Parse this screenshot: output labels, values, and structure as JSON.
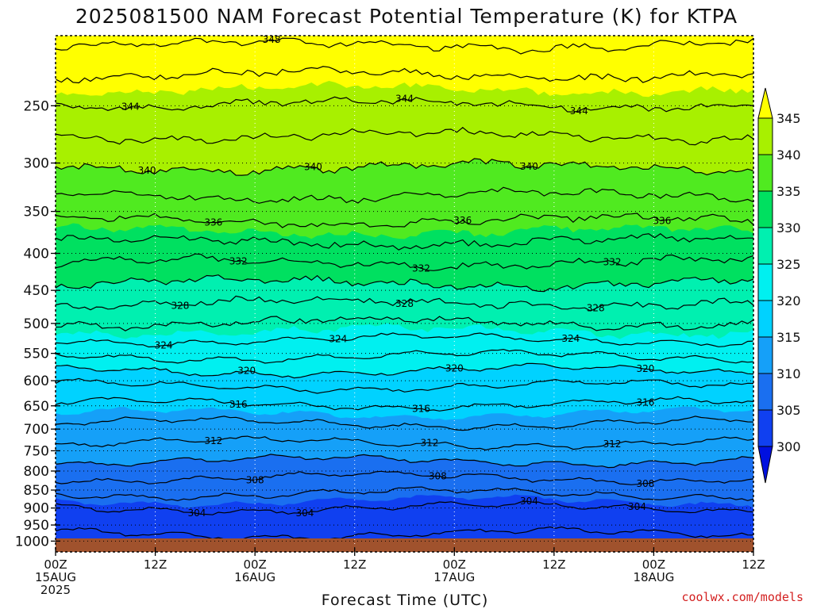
{
  "title": "2025081500 NAM Forecast Potential Temperature (K) for KTPA",
  "credit": "coolwx.com/models",
  "chart_data": {
    "type": "heatmap",
    "title": "2025081500 NAM Forecast Potential Temperature (K) for KTPA",
    "xlabel": "Forecast Time (UTC)",
    "ylabel": "",
    "x_range_hours": [
      0,
      84
    ],
    "y_range_hpa": [
      1035,
      200
    ],
    "y_scale": "log",
    "grid": "dotted",
    "y_ticks": [
      250,
      300,
      350,
      400,
      450,
      500,
      550,
      600,
      650,
      700,
      750,
      800,
      850,
      900,
      950,
      1000
    ],
    "x_ticks": [
      {
        "hour": 0,
        "line1": "00Z",
        "line2": "15AUG",
        "line3": "2025"
      },
      {
        "hour": 12,
        "line1": "12Z",
        "line2": "",
        "line3": ""
      },
      {
        "hour": 24,
        "line1": "00Z",
        "line2": "16AUG",
        "line3": ""
      },
      {
        "hour": 36,
        "line1": "12Z",
        "line2": "",
        "line3": ""
      },
      {
        "hour": 48,
        "line1": "00Z",
        "line2": "17AUG",
        "line3": ""
      },
      {
        "hour": 60,
        "line1": "12Z",
        "line2": "",
        "line3": ""
      },
      {
        "hour": 72,
        "line1": "00Z",
        "line2": "18AUG",
        "line3": ""
      },
      {
        "hour": 84,
        "line1": "12Z",
        "line2": "",
        "line3": ""
      }
    ],
    "colorbar": {
      "ticks": [
        300,
        305,
        310,
        315,
        320,
        325,
        330,
        335,
        340,
        345
      ],
      "bands": [
        {
          "lo": 295,
          "hi": 300,
          "color": "#0010e0"
        },
        {
          "lo": 300,
          "hi": 305,
          "color": "#1040f0"
        },
        {
          "lo": 305,
          "hi": 310,
          "color": "#1a6ff0"
        },
        {
          "lo": 310,
          "hi": 315,
          "color": "#15a0f8"
        },
        {
          "lo": 315,
          "hi": 320,
          "color": "#00d2ff"
        },
        {
          "lo": 320,
          "hi": 325,
          "color": "#00f0f0"
        },
        {
          "lo": 325,
          "hi": 330,
          "color": "#00f0b0"
        },
        {
          "lo": 330,
          "hi": 335,
          "color": "#00e060"
        },
        {
          "lo": 335,
          "hi": 340,
          "color": "#50ea20"
        },
        {
          "lo": 340,
          "hi": 345,
          "color": "#a8f000"
        },
        {
          "lo": 345,
          "hi": 350,
          "color": "#ffff00"
        }
      ]
    },
    "terrain_color": "#a0522d",
    "profile": [
      {
        "p": 1000,
        "theta": 301.5
      },
      {
        "p": 950,
        "theta": 302.6
      },
      {
        "p": 900,
        "theta": 304.0
      },
      {
        "p": 850,
        "theta": 306.5
      },
      {
        "p": 800,
        "theta": 308.8
      },
      {
        "p": 750,
        "theta": 311.2
      },
      {
        "p": 700,
        "theta": 313.4
      },
      {
        "p": 650,
        "theta": 315.8
      },
      {
        "p": 600,
        "theta": 318.6
      },
      {
        "p": 550,
        "theta": 322.4
      },
      {
        "p": 500,
        "theta": 325.9
      },
      {
        "p": 450,
        "theta": 329.3
      },
      {
        "p": 400,
        "theta": 332.9
      },
      {
        "p": 350,
        "theta": 336.9
      },
      {
        "p": 300,
        "theta": 340.3
      },
      {
        "p": 250,
        "theta": 343.9
      },
      {
        "p": 210,
        "theta": 347.6
      }
    ],
    "contour_labels": [
      {
        "text": "348",
        "hour": 26
      },
      {
        "text": "344",
        "hour": 9
      },
      {
        "text": "344",
        "hour": 42
      },
      {
        "text": "344",
        "hour": 63
      },
      {
        "text": "340",
        "hour": 11
      },
      {
        "text": "340",
        "hour": 31
      },
      {
        "text": "340",
        "hour": 57
      },
      {
        "text": "336",
        "hour": 19
      },
      {
        "text": "336",
        "hour": 49
      },
      {
        "text": "336",
        "hour": 73
      },
      {
        "text": "332",
        "hour": 22
      },
      {
        "text": "332",
        "hour": 44
      },
      {
        "text": "332",
        "hour": 67
      },
      {
        "text": "328",
        "hour": 15
      },
      {
        "text": "328",
        "hour": 42
      },
      {
        "text": "328",
        "hour": 65
      },
      {
        "text": "324",
        "hour": 13
      },
      {
        "text": "324",
        "hour": 34
      },
      {
        "text": "324",
        "hour": 62
      },
      {
        "text": "320",
        "hour": 23
      },
      {
        "text": "320",
        "hour": 48
      },
      {
        "text": "320",
        "hour": 71
      },
      {
        "text": "316",
        "hour": 22
      },
      {
        "text": "316",
        "hour": 44
      },
      {
        "text": "316",
        "hour": 71
      },
      {
        "text": "312",
        "hour": 19
      },
      {
        "text": "312",
        "hour": 45
      },
      {
        "text": "312",
        "hour": 67
      },
      {
        "text": "308",
        "hour": 24
      },
      {
        "text": "308",
        "hour": 46
      },
      {
        "text": "308",
        "hour": 71
      },
      {
        "text": "304",
        "hour": 17
      },
      {
        "text": "304",
        "hour": 30
      },
      {
        "text": "304",
        "hour": 57
      },
      {
        "text": "304",
        "hour": 70
      }
    ]
  }
}
